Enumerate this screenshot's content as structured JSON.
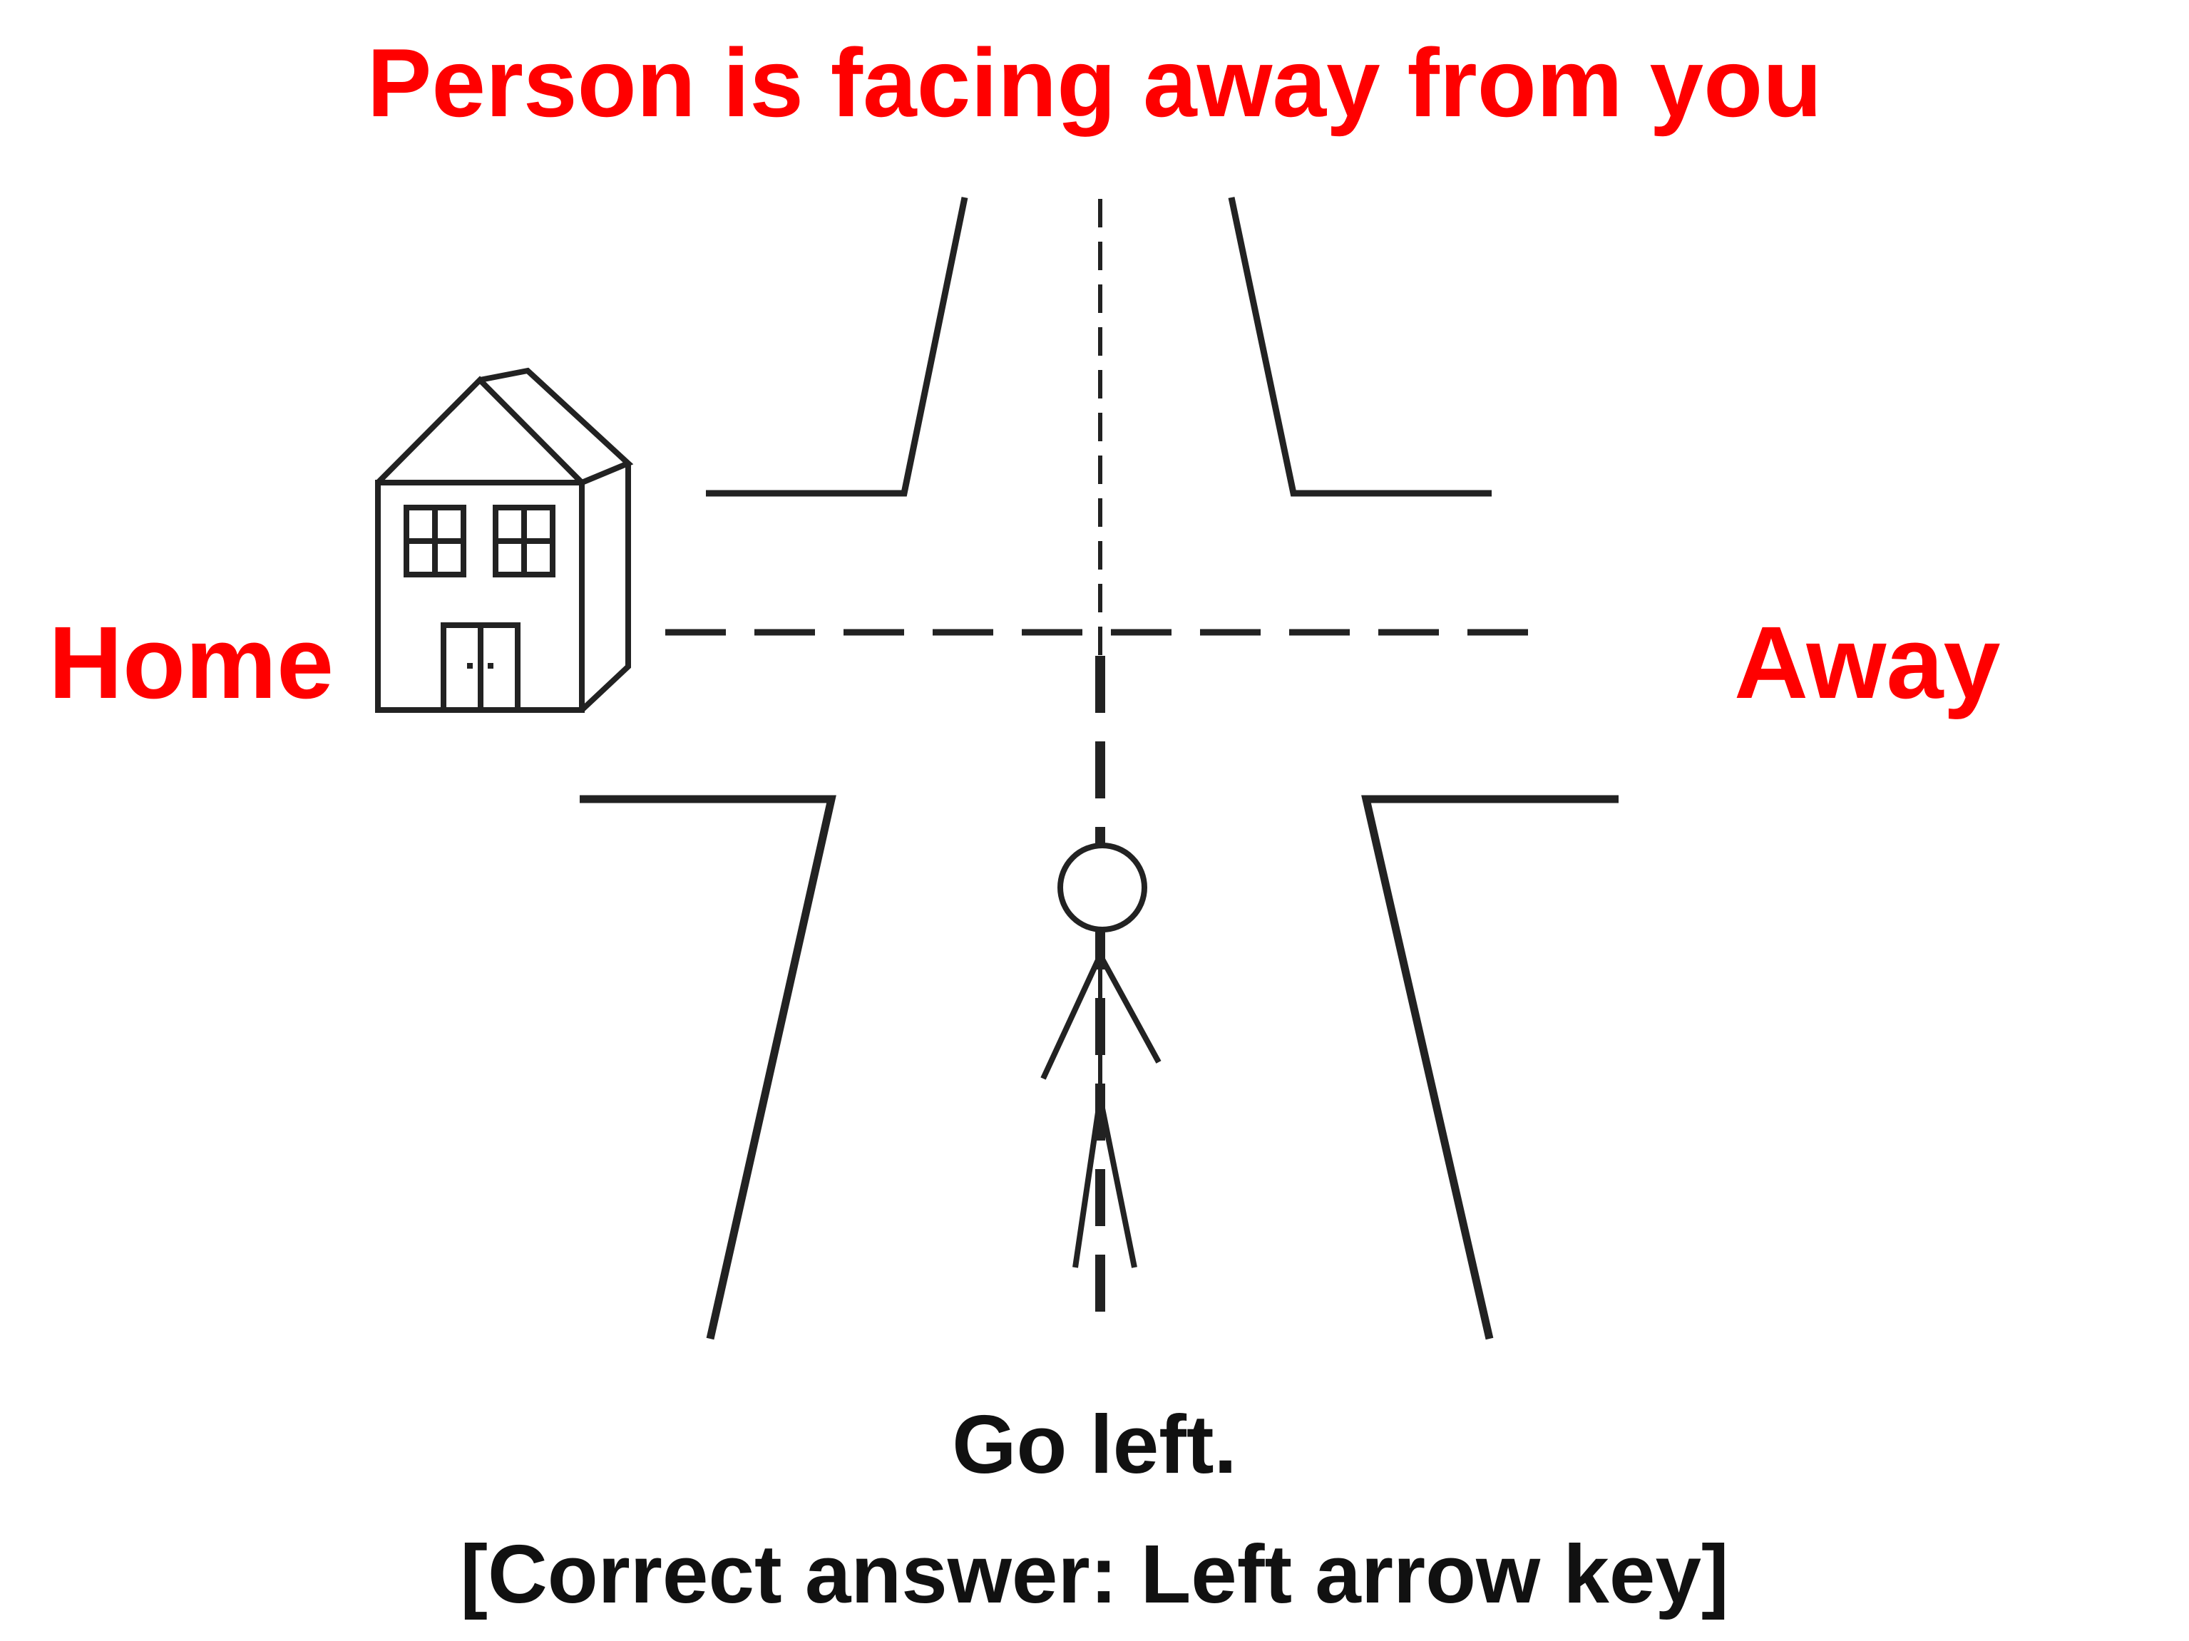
{
  "title": "Person is facing away from you",
  "left_label": "Home",
  "right_label": "Away",
  "instruction": "Go left.",
  "answer": "[Correct answer: Left arrow key]",
  "colors": {
    "label_red": "#ff0000",
    "text_black": "#111111",
    "line": "#222222"
  },
  "icons": [
    "house-icon",
    "stick-figure-person-icon"
  ]
}
